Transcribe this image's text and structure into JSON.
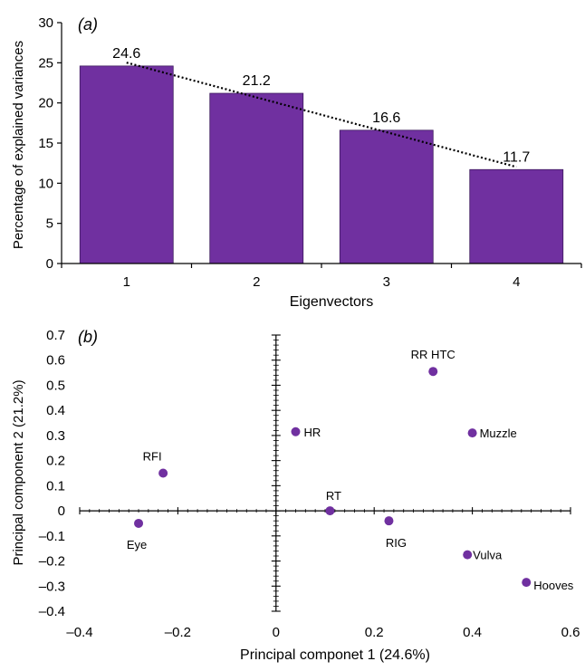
{
  "chart_data": [
    {
      "type": "bar",
      "panel_label": "a",
      "categories": [
        "1",
        "2",
        "3",
        "4"
      ],
      "values": [
        24.6,
        21.2,
        16.6,
        11.7
      ],
      "data_labels": [
        "24.6",
        "21.2",
        "16.6",
        "11.7"
      ],
      "title": "",
      "xlabel": "Eigenvectors",
      "ylabel": "Percentage of explained variances",
      "ylim": [
        0,
        30
      ],
      "yticks": [
        0,
        5,
        10,
        15,
        20,
        25,
        30
      ],
      "trendline": "linear, dotted",
      "bar_color": "#7030a0",
      "grid": false,
      "legend": "none"
    },
    {
      "type": "scatter",
      "panel_label": "b",
      "points": [
        {
          "label": "RR  HTC",
          "x": 0.32,
          "y": 0.555
        },
        {
          "label": "Muzzle",
          "x": 0.4,
          "y": 0.31
        },
        {
          "label": "HR",
          "x": 0.04,
          "y": 0.315
        },
        {
          "label": "RFI",
          "x": -0.23,
          "y": 0.15
        },
        {
          "label": "RT",
          "x": 0.11,
          "y": 0.0
        },
        {
          "label": "Eye",
          "x": -0.28,
          "y": -0.05
        },
        {
          "label": "RIG",
          "x": 0.23,
          "y": -0.04
        },
        {
          "label": "Vulva",
          "x": 0.39,
          "y": -0.175
        },
        {
          "label": "Hooves",
          "x": 0.51,
          "y": -0.285
        }
      ],
      "title": "",
      "xlabel": "Principal componet 1 (24.6%)",
      "ylabel": "Principal component 2 (21.2%)",
      "xlim": [
        -0.4,
        0.6
      ],
      "ylim": [
        -0.4,
        0.7
      ],
      "xticks": [
        "–0.4",
        "–0.2",
        "0",
        "0.2",
        "0.4",
        "0.6"
      ],
      "yticks": [
        "0.7",
        "0.6",
        "0.5",
        "0.4",
        "0.3",
        "0.2",
        "0.1",
        "0",
        "–0.1",
        "–0.2",
        "–0.3",
        "–0.4"
      ],
      "point_color": "#7030a0",
      "grid": false,
      "legend": "none"
    }
  ]
}
